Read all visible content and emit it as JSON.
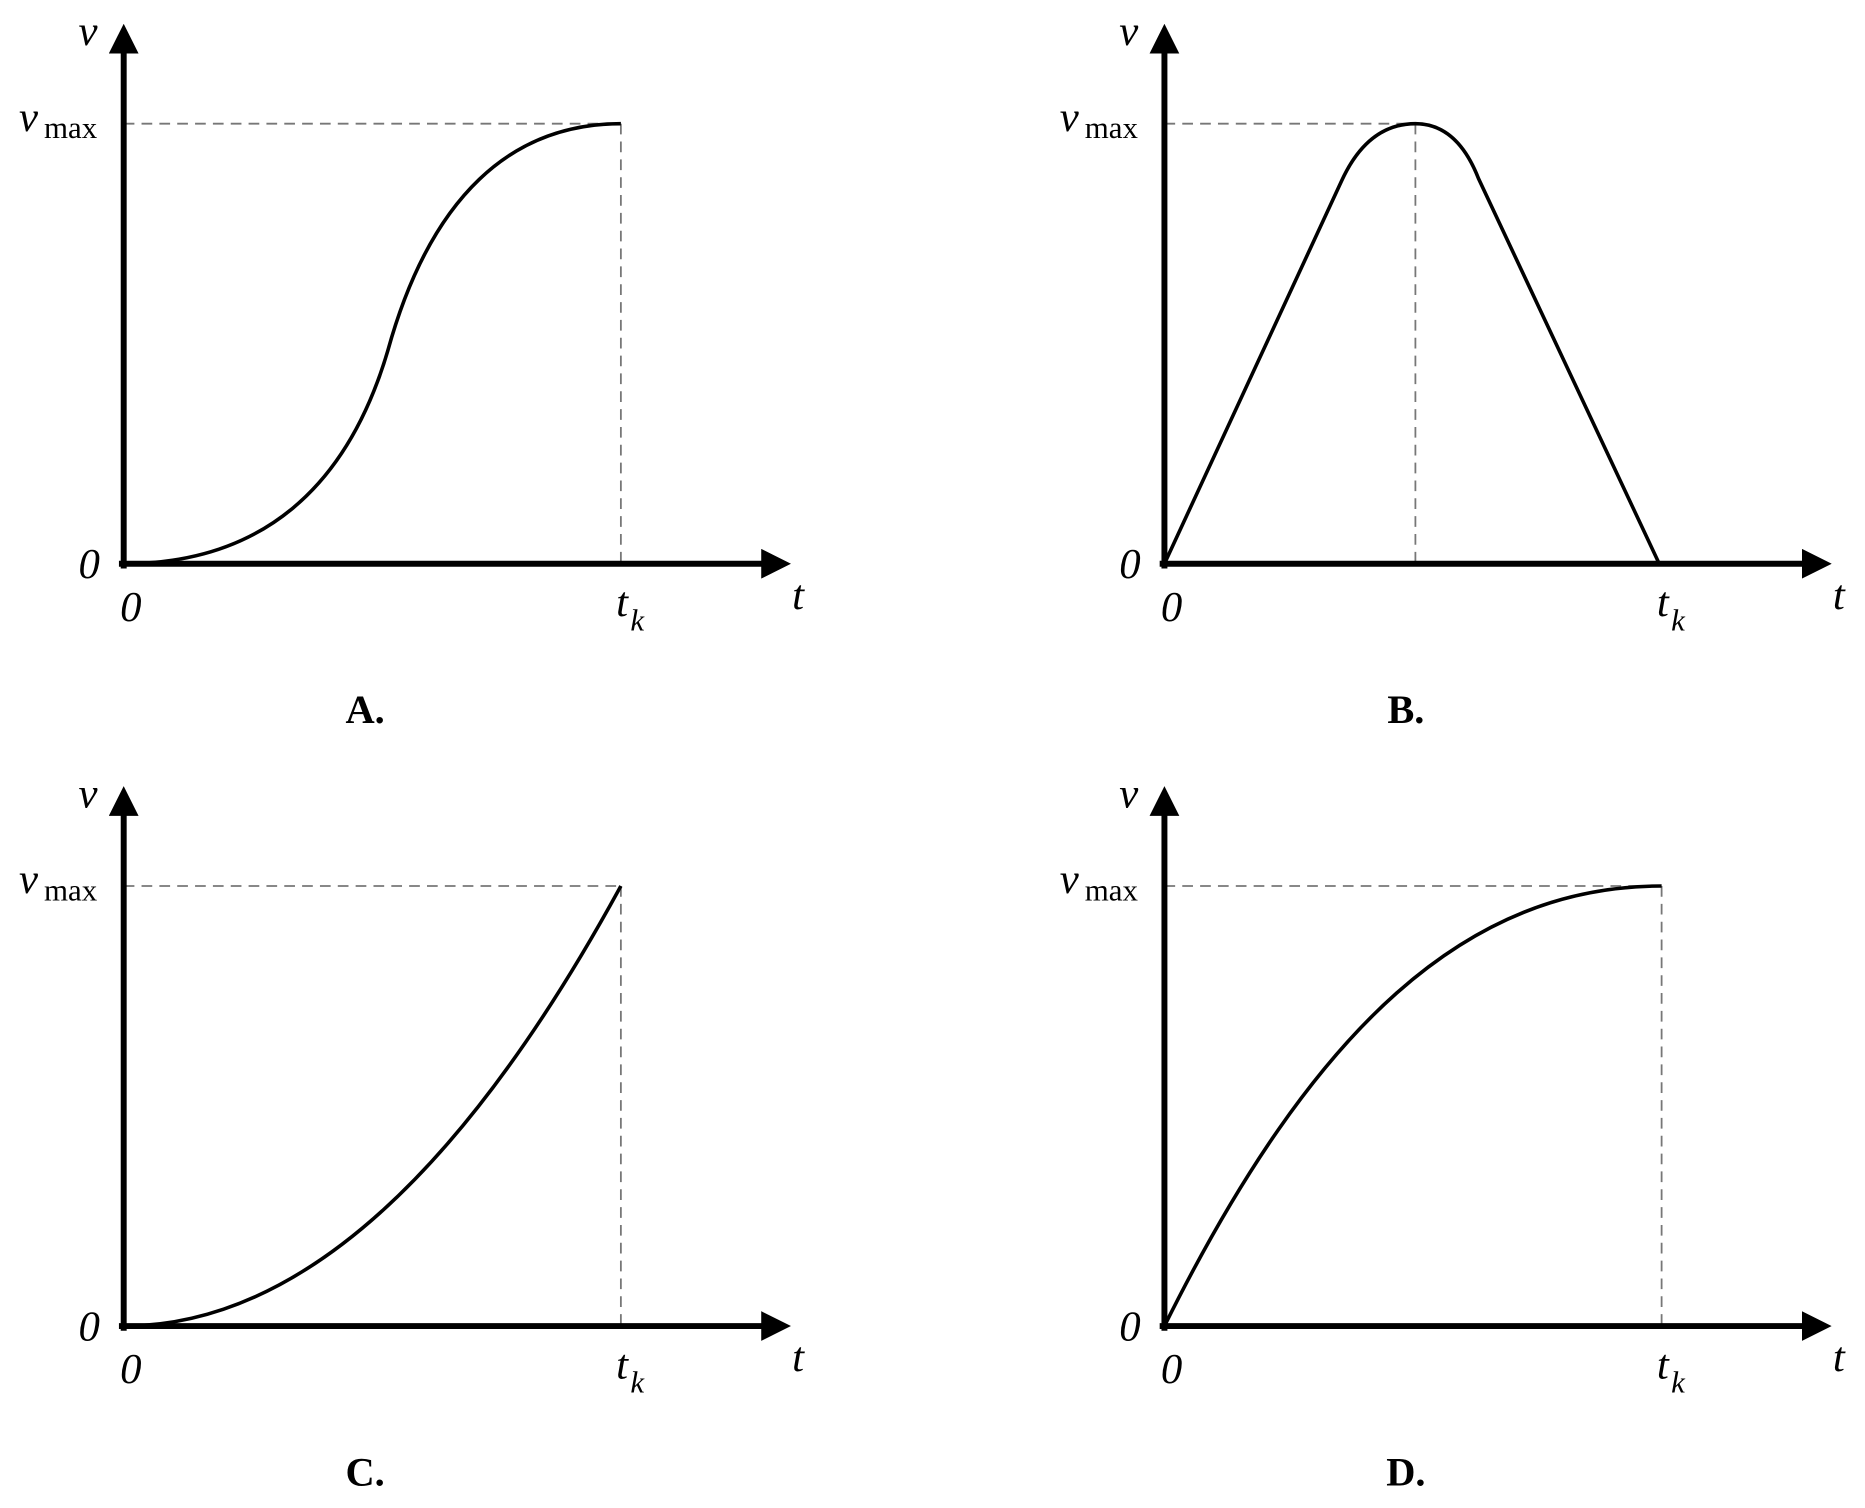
{
  "panels": [
    {
      "label": "A.",
      "y_axis": "v",
      "y_top": {
        "main": "v",
        "sub": "max"
      },
      "y_zero": "0",
      "x_zero": "0",
      "x_axis": "t",
      "x_mark": {
        "main": "t",
        "sub": "k"
      }
    },
    {
      "label": "B.",
      "y_axis": "v",
      "y_top": {
        "main": "v",
        "sub": "max"
      },
      "y_zero": "0",
      "x_zero": "0",
      "x_axis": "t",
      "x_mark": {
        "main": "t",
        "sub": "k"
      }
    },
    {
      "label": "C.",
      "y_axis": "v",
      "y_top": {
        "main": "v",
        "sub": "max"
      },
      "y_zero": "0",
      "x_zero": "0",
      "x_axis": "t",
      "x_mark": {
        "main": "t",
        "sub": "k"
      }
    },
    {
      "label": "D.",
      "y_axis": "v",
      "y_top": {
        "main": "v",
        "sub": "max"
      },
      "y_zero": "0",
      "x_zero": "0",
      "x_axis": "t",
      "x_mark": {
        "main": "t",
        "sub": "k"
      }
    }
  ]
}
